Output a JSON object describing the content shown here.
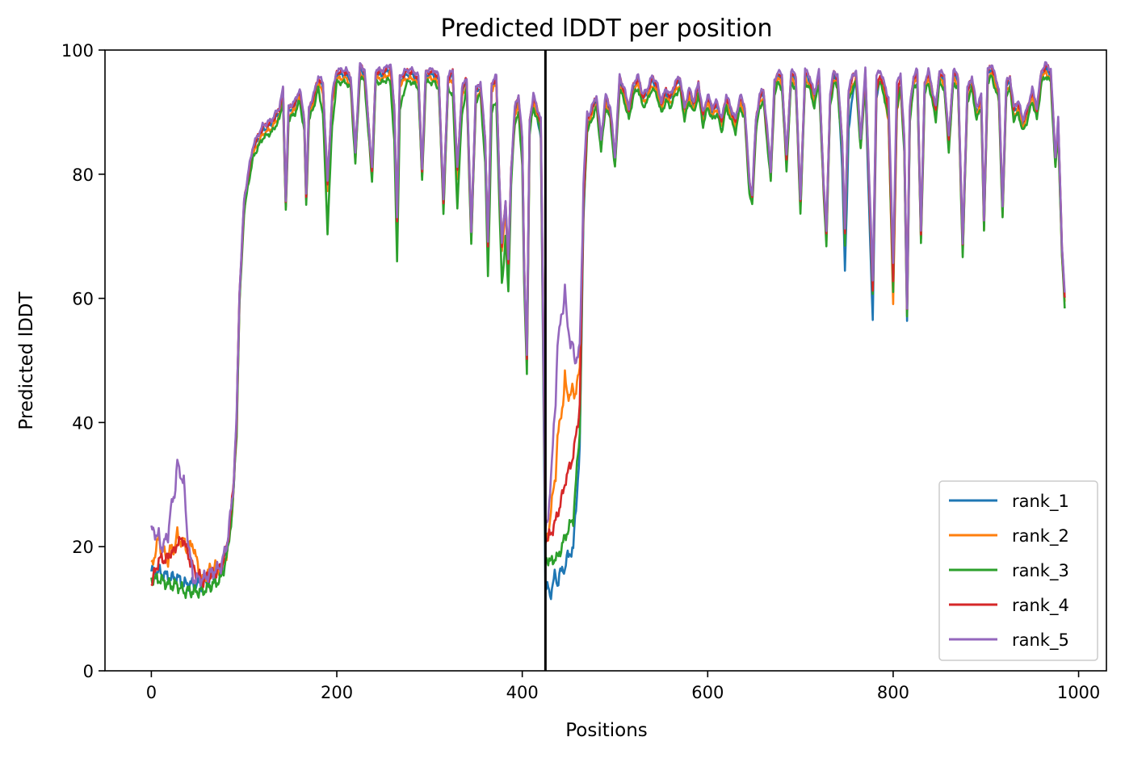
{
  "chart_data": {
    "type": "line",
    "title": "Predicted lDDT per position",
    "xlabel": "Positions",
    "ylabel": "Predicted lDDT",
    "xlim": [
      -50,
      1030
    ],
    "ylim": [
      0,
      100
    ],
    "xticks": [
      0,
      200,
      400,
      600,
      800,
      1000
    ],
    "yticks": [
      0,
      20,
      40,
      60,
      80,
      100
    ],
    "grid": false,
    "legend_position": "lower-right",
    "separator_x": 425,
    "series": [
      {
        "name": "rank_1",
        "color": "#1f77b4",
        "offset": 0.0,
        "deltas": {
          "425": -4.5,
          "430": -4.5,
          "438": -5.5,
          "446": -8,
          "455": -6,
          "462": -3,
          "750": -7,
          "777": -6,
          "815": -1.5
        }
      },
      {
        "name": "rank_2",
        "color": "#ff7f0e",
        "offset": -0.6,
        "deltas": {
          "8": 6,
          "20": 4,
          "28": 5,
          "35": 6,
          "45": 7,
          "60": 2,
          "70": 2,
          "430": 3,
          "438": 12,
          "446": 18,
          "455": 16,
          "462": 4,
          "800": -2
        }
      },
      {
        "name": "rank_3",
        "color": "#2ca02c",
        "offset": -1.2,
        "deltas": {
          "190": -6,
          "265": -5,
          "330": -4,
          "365": -4,
          "380": -5,
          "400": -2,
          "430": -1,
          "438": -2,
          "446": -3,
          "455": -1
        }
      },
      {
        "name": "rank_4",
        "color": "#d62728",
        "offset": 0.5,
        "deltas": {
          "0": -3,
          "8": 2,
          "20": 3,
          "28": 3,
          "35": 6,
          "45": 2,
          "430": 1,
          "438": 2,
          "446": 3,
          "455": 7,
          "780": -2
        }
      },
      {
        "name": "rank_5",
        "color": "#9467bd",
        "offset": 0.8,
        "deltas": {
          "0": 5,
          "8": 4,
          "20": 7,
          "28": 13,
          "35": 12,
          "45": 0,
          "430": 4,
          "438": 24,
          "446": 29,
          "455": 20,
          "462": 5,
          "800": 3
        }
      }
    ],
    "base_curve": [
      [
        0,
        16
      ],
      [
        8,
        16
      ],
      [
        20,
        15
      ],
      [
        28,
        15
      ],
      [
        35,
        14
      ],
      [
        45,
        14
      ],
      [
        55,
        14
      ],
      [
        65,
        15
      ],
      [
        75,
        16
      ],
      [
        82,
        20
      ],
      [
        88,
        28
      ],
      [
        92,
        40
      ],
      [
        95,
        60
      ],
      [
        100,
        75
      ],
      [
        105,
        80
      ],
      [
        110,
        84
      ],
      [
        120,
        87
      ],
      [
        130,
        88
      ],
      [
        138,
        90
      ],
      [
        142,
        93
      ],
      [
        145,
        75
      ],
      [
        148,
        90
      ],
      [
        155,
        91
      ],
      [
        160,
        93
      ],
      [
        165,
        88
      ],
      [
        167,
        76
      ],
      [
        170,
        90
      ],
      [
        175,
        92
      ],
      [
        180,
        95
      ],
      [
        185,
        94
      ],
      [
        190,
        78
      ],
      [
        195,
        92
      ],
      [
        200,
        96
      ],
      [
        210,
        96
      ],
      [
        215,
        95
      ],
      [
        220,
        83
      ],
      [
        225,
        97
      ],
      [
        230,
        96
      ],
      [
        238,
        80
      ],
      [
        242,
        96
      ],
      [
        250,
        96
      ],
      [
        258,
        97
      ],
      [
        262,
        90
      ],
      [
        265,
        72
      ],
      [
        268,
        95
      ],
      [
        275,
        96
      ],
      [
        282,
        96
      ],
      [
        288,
        95
      ],
      [
        292,
        80
      ],
      [
        296,
        96
      ],
      [
        305,
        96
      ],
      [
        310,
        95
      ],
      [
        315,
        75
      ],
      [
        320,
        95
      ],
      [
        325,
        96
      ],
      [
        330,
        80
      ],
      [
        335,
        93
      ],
      [
        340,
        95
      ],
      [
        345,
        70
      ],
      [
        350,
        93
      ],
      [
        355,
        94
      ],
      [
        360,
        85
      ],
      [
        363,
        68
      ],
      [
        367,
        94
      ],
      [
        372,
        95
      ],
      [
        375,
        80
      ],
      [
        378,
        68
      ],
      [
        382,
        75
      ],
      [
        385,
        65
      ],
      [
        388,
        80
      ],
      [
        392,
        90
      ],
      [
        396,
        92
      ],
      [
        400,
        85
      ],
      [
        402,
        65
      ],
      [
        405,
        50
      ],
      [
        408,
        88
      ],
      [
        412,
        92
      ],
      [
        416,
        90
      ],
      [
        420,
        88
      ],
      [
        422,
        62
      ],
      [
        425,
        20
      ],
      [
        430,
        20
      ],
      [
        438,
        22
      ],
      [
        446,
        26
      ],
      [
        455,
        27
      ],
      [
        462,
        40
      ],
      [
        466,
        75
      ],
      [
        470,
        88
      ],
      [
        475,
        90
      ],
      [
        480,
        92
      ],
      [
        485,
        85
      ],
      [
        490,
        92
      ],
      [
        495,
        90
      ],
      [
        500,
        82
      ],
      [
        505,
        95
      ],
      [
        510,
        93
      ],
      [
        515,
        90
      ],
      [
        520,
        94
      ],
      [
        525,
        95
      ],
      [
        530,
        92
      ],
      [
        535,
        93
      ],
      [
        540,
        95
      ],
      [
        545,
        94
      ],
      [
        550,
        91
      ],
      [
        555,
        93
      ],
      [
        560,
        92
      ],
      [
        565,
        94
      ],
      [
        570,
        95
      ],
      [
        575,
        90
      ],
      [
        580,
        93
      ],
      [
        585,
        91
      ],
      [
        590,
        94
      ],
      [
        595,
        89
      ],
      [
        600,
        92
      ],
      [
        605,
        90
      ],
      [
        610,
        91
      ],
      [
        615,
        88
      ],
      [
        620,
        92
      ],
      [
        625,
        90
      ],
      [
        630,
        88
      ],
      [
        635,
        92
      ],
      [
        640,
        90
      ],
      [
        645,
        78
      ],
      [
        648,
        76
      ],
      [
        652,
        88
      ],
      [
        656,
        92
      ],
      [
        660,
        93
      ],
      [
        665,
        85
      ],
      [
        668,
        80
      ],
      [
        672,
        94
      ],
      [
        676,
        96
      ],
      [
        680,
        95
      ],
      [
        685,
        82
      ],
      [
        690,
        96
      ],
      [
        695,
        95
      ],
      [
        700,
        75
      ],
      [
        705,
        96
      ],
      [
        710,
        95
      ],
      [
        715,
        92
      ],
      [
        720,
        96
      ],
      [
        725,
        78
      ],
      [
        728,
        70
      ],
      [
        732,
        92
      ],
      [
        736,
        96
      ],
      [
        740,
        95
      ],
      [
        745,
        85
      ],
      [
        748,
        70
      ],
      [
        752,
        93
      ],
      [
        756,
        95
      ],
      [
        760,
        96
      ],
      [
        765,
        85
      ],
      [
        770,
        96
      ],
      [
        775,
        75
      ],
      [
        778,
        62
      ],
      [
        782,
        95
      ],
      [
        786,
        96
      ],
      [
        790,
        94
      ],
      [
        795,
        90
      ],
      [
        800,
        62
      ],
      [
        804,
        92
      ],
      [
        808,
        95
      ],
      [
        812,
        85
      ],
      [
        815,
        58
      ],
      [
        818,
        90
      ],
      [
        822,
        95
      ],
      [
        826,
        96
      ],
      [
        830,
        70
      ],
      [
        834,
        94
      ],
      [
        838,
        96
      ],
      [
        842,
        93
      ],
      [
        846,
        90
      ],
      [
        850,
        96
      ],
      [
        855,
        95
      ],
      [
        860,
        85
      ],
      [
        865,
        96
      ],
      [
        870,
        95
      ],
      [
        875,
        68
      ],
      [
        880,
        93
      ],
      [
        885,
        95
      ],
      [
        890,
        90
      ],
      [
        895,
        92
      ],
      [
        898,
        72
      ],
      [
        902,
        96
      ],
      [
        906,
        97
      ],
      [
        910,
        95
      ],
      [
        914,
        93
      ],
      [
        918,
        74
      ],
      [
        922,
        94
      ],
      [
        926,
        95
      ],
      [
        930,
        90
      ],
      [
        935,
        91
      ],
      [
        940,
        88
      ],
      [
        945,
        90
      ],
      [
        950,
        93
      ],
      [
        955,
        90
      ],
      [
        960,
        96
      ],
      [
        965,
        97
      ],
      [
        970,
        96
      ],
      [
        975,
        82
      ],
      [
        978,
        88
      ],
      [
        982,
        68
      ],
      [
        985,
        60
      ]
    ]
  }
}
